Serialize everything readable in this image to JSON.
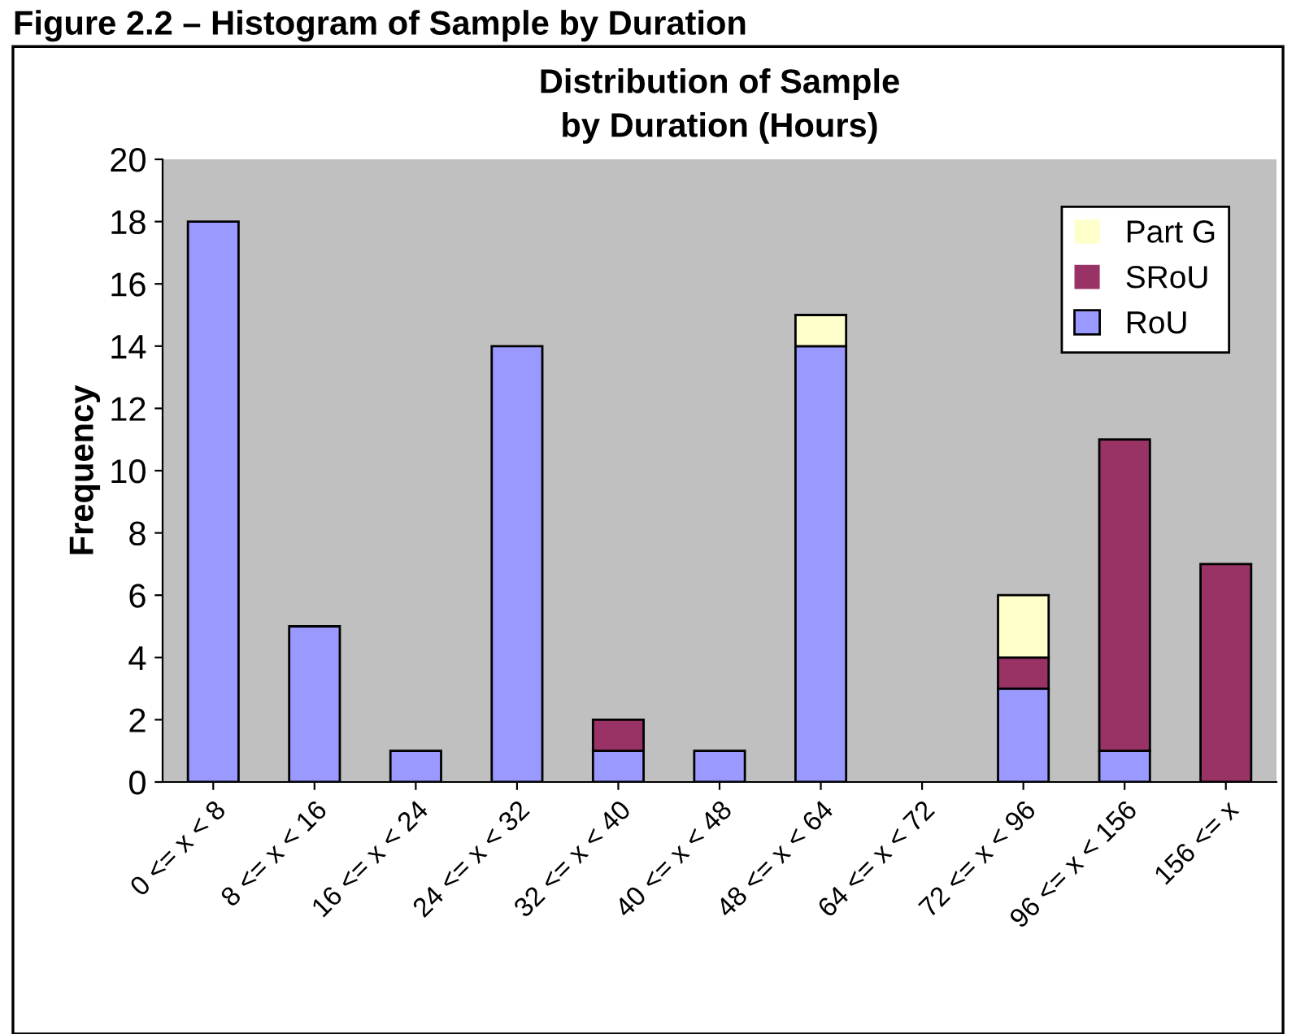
{
  "chart_data": {
    "type": "bar",
    "stacked": true,
    "title": "Distribution of Sample\nby Duration (Hours)",
    "ylabel": "Frequency",
    "annotations": [
      "Figure 2.2 – Histogram of Sample by Duration"
    ],
    "categories": [
      "0 <= x < 8",
      "8 <= x < 16",
      "16 <= x < 24",
      "24 <= x < 32",
      "32 <= x < 40",
      "40 <= x < 48",
      "48 <= x < 64",
      "64 <= x < 72",
      "72 <= x < 96",
      "96 <= x < 156",
      "156 <= x"
    ],
    "series": [
      {
        "name": "RoU",
        "color": "#9999ff",
        "values": [
          18,
          5,
          1,
          14,
          1,
          1,
          14,
          0,
          3,
          1,
          0
        ]
      },
      {
        "name": "SRoU",
        "color": "#993366",
        "values": [
          0,
          0,
          0,
          0,
          1,
          0,
          0,
          0,
          1,
          10,
          7
        ]
      },
      {
        "name": "Part G",
        "color": "#ffffcc",
        "values": [
          0,
          0,
          0,
          0,
          0,
          0,
          1,
          0,
          2,
          0,
          0
        ]
      }
    ],
    "ylim": [
      0,
      20
    ],
    "yticks": [
      0,
      2,
      4,
      6,
      8,
      10,
      12,
      14,
      16,
      18,
      20
    ],
    "grid": false,
    "legend": "top right"
  }
}
